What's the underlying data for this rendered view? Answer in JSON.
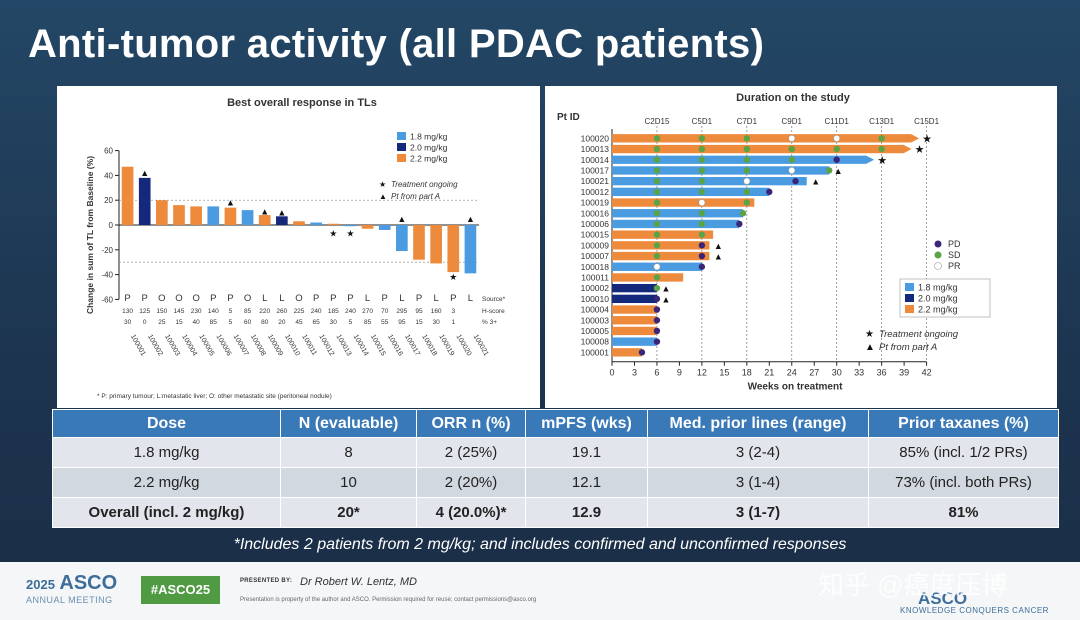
{
  "slide": {
    "title": "Anti-tumor activity (all PDAC patients)"
  },
  "colors": {
    "d18": "#4a9be0",
    "d20": "#14287c",
    "d22": "#ed8a3c",
    "pd": "#3a2578",
    "sd": "#5aa347",
    "pr": "#ffffff",
    "table_header": "#3a79b7"
  },
  "chart_data": [
    {
      "type": "bar",
      "title": "Best overall response in TLs",
      "ylabel": "Change in sum of TL from Baseline (%)",
      "xlabel": "",
      "ylim": [
        -60,
        60
      ],
      "yticks": [
        60,
        40,
        20,
        0,
        -20,
        -40,
        -60
      ],
      "dashed_reference_lines": [
        20,
        -30
      ],
      "grid": false,
      "legend_placement": "top-right",
      "legend": [
        {
          "label": "1.8 mg/kg",
          "color": "#4a9be0"
        },
        {
          "label": "2.0 mg/kg",
          "color": "#14287c"
        },
        {
          "label": "2.2 mg/kg",
          "color": "#ed8a3c"
        }
      ],
      "markers_legend": [
        {
          "symbol": "★",
          "label": "Treatment ongoing"
        },
        {
          "symbol": "▲",
          "label": "Pt from part A"
        }
      ],
      "categories": [
        "100001",
        "100002",
        "100003",
        "100004",
        "100005",
        "100006",
        "100007",
        "100008",
        "100009",
        "100010",
        "100011",
        "100012",
        "100013",
        "100014",
        "100015",
        "100016",
        "100017",
        "100018",
        "100019",
        "100020",
        "100021"
      ],
      "values": [
        47,
        38,
        20,
        16,
        15,
        15,
        14,
        12,
        8,
        7,
        3,
        2,
        1,
        -1,
        -3,
        -4,
        -21,
        -28,
        -31,
        -38,
        -39
      ],
      "dose_group": [
        "d22",
        "d20",
        "d22",
        "d22",
        "d22",
        "d18",
        "d22",
        "d18",
        "d22",
        "d20",
        "d22",
        "d18",
        "d22",
        "d18",
        "d22",
        "d18",
        "d18",
        "d22",
        "d22",
        "d22",
        "d18"
      ],
      "markers": [
        {
          "index": 1,
          "symbol": "▲",
          "value": 42
        },
        {
          "index": 6,
          "symbol": "▲",
          "value": 18
        },
        {
          "index": 8,
          "symbol": "▲",
          "value": 11
        },
        {
          "index": 9,
          "symbol": "▲",
          "value": 10
        },
        {
          "index": 12,
          "symbol": "★",
          "value": -7
        },
        {
          "index": 13,
          "symbol": "★",
          "value": -7
        },
        {
          "index": 16,
          "symbol": "▲",
          "value": 5
        },
        {
          "index": 19,
          "symbol": "★",
          "value": -42
        },
        {
          "index": 20,
          "symbol": "▲",
          "value": 5
        }
      ],
      "source_row": [
        "P",
        "P",
        "O",
        "O",
        "O",
        "P",
        "P",
        "O",
        "L",
        "L",
        "O",
        "P",
        "P",
        "P",
        "L",
        "P",
        "L",
        "P",
        "L",
        "P",
        "L"
      ],
      "hscore_row": [
        "130",
        "125",
        "150",
        "145",
        "230",
        "140",
        "5",
        "85",
        "220",
        "260",
        "225",
        "240",
        "185",
        "240",
        "270",
        "70",
        "295",
        "95",
        "160",
        "3",
        ""
      ],
      "pct3_row": [
        "30",
        "0",
        "25",
        "15",
        "40",
        "85",
        "5",
        "60",
        "80",
        "20",
        "45",
        "65",
        "30",
        "5",
        "85",
        "55",
        "95",
        "15",
        "30",
        "1",
        ""
      ],
      "row_labels": [
        "Source*",
        "H-score",
        "% 3+"
      ],
      "footnote": "* P: primary tumour; L:metastatic liver; O: other metastatic site (peritoneal nodule)"
    },
    {
      "type": "swimmer",
      "title": "Duration on the study",
      "xlabel": "Weeks on treatment",
      "ylabel": "Pt ID",
      "xlim": [
        0,
        42
      ],
      "xticks": [
        0,
        3,
        6,
        9,
        12,
        15,
        18,
        21,
        24,
        27,
        30,
        33,
        36,
        39,
        42
      ],
      "visits": [
        {
          "label": "C2D15",
          "week": 6
        },
        {
          "label": "C5D1",
          "week": 12
        },
        {
          "label": "C7D1",
          "week": 18
        },
        {
          "label": "C9D1",
          "week": 24
        },
        {
          "label": "C11D1",
          "week": 30
        },
        {
          "label": "C13D1",
          "week": 36
        },
        {
          "label": "C15D1",
          "week": 42
        }
      ],
      "legend": [
        {
          "label": "PD",
          "color": "#3a2578"
        },
        {
          "label": "SD",
          "color": "#5aa347"
        },
        {
          "label": "PR",
          "color": "#ffffff"
        },
        {
          "label": "1.8 mg/kg",
          "color": "#4a9be0"
        },
        {
          "label": "2.0 mg/kg",
          "color": "#14287c"
        },
        {
          "label": "2.2 mg/kg",
          "color": "#ed8a3c"
        },
        {
          "label": "Treatment ongoing",
          "symbol": "★"
        },
        {
          "label": "Pt from part A",
          "symbol": "▲"
        }
      ],
      "patients": [
        {
          "id": "100020",
          "dose": "d22",
          "weeks": 41,
          "ongoing": true,
          "partA": false,
          "assess": [
            [
              6,
              "sd"
            ],
            [
              12,
              "sd"
            ],
            [
              18,
              "sd"
            ],
            [
              24,
              "pr"
            ],
            [
              30,
              "pr"
            ],
            [
              36,
              "sd"
            ]
          ]
        },
        {
          "id": "100013",
          "dose": "d22",
          "weeks": 40,
          "ongoing": true,
          "partA": false,
          "assess": [
            [
              6,
              "sd"
            ],
            [
              12,
              "sd"
            ],
            [
              18,
              "sd"
            ],
            [
              24,
              "sd"
            ],
            [
              30,
              "sd"
            ],
            [
              36,
              "sd"
            ]
          ]
        },
        {
          "id": "100014",
          "dose": "d18",
          "weeks": 35,
          "ongoing": true,
          "partA": false,
          "assess": [
            [
              6,
              "sd"
            ],
            [
              12,
              "sd"
            ],
            [
              18,
              "sd"
            ],
            [
              24,
              "sd"
            ],
            [
              30,
              "pd"
            ]
          ]
        },
        {
          "id": "100017",
          "dose": "d18",
          "weeks": 29,
          "ongoing": false,
          "partA": true,
          "assess": [
            [
              6,
              "sd"
            ],
            [
              12,
              "sd"
            ],
            [
              18,
              "sd"
            ],
            [
              24,
              "pr"
            ],
            [
              29,
              "sd"
            ]
          ]
        },
        {
          "id": "100021",
          "dose": "d18",
          "weeks": 26,
          "ongoing": false,
          "partA": true,
          "assess": [
            [
              6,
              "sd"
            ],
            [
              12,
              "sd"
            ],
            [
              18,
              "pr"
            ],
            [
              24.5,
              "pd"
            ]
          ]
        },
        {
          "id": "100012",
          "dose": "d18",
          "weeks": 21,
          "ongoing": false,
          "partA": false,
          "assess": [
            [
              6,
              "sd"
            ],
            [
              12,
              "sd"
            ],
            [
              18,
              "sd"
            ],
            [
              21,
              "pd"
            ]
          ]
        },
        {
          "id": "100019",
          "dose": "d22",
          "weeks": 19,
          "ongoing": false,
          "partA": false,
          "assess": [
            [
              6,
              "sd"
            ],
            [
              12,
              "pr"
            ],
            [
              18,
              "sd"
            ]
          ]
        },
        {
          "id": "100016",
          "dose": "d18",
          "weeks": 17.5,
          "ongoing": false,
          "partA": false,
          "assess": [
            [
              6,
              "sd"
            ],
            [
              12,
              "sd"
            ],
            [
              17.5,
              "sd"
            ]
          ]
        },
        {
          "id": "100006",
          "dose": "d18",
          "weeks": 17,
          "ongoing": false,
          "partA": false,
          "assess": [
            [
              6,
              "sd"
            ],
            [
              12,
              "sd"
            ],
            [
              17,
              "pd"
            ]
          ]
        },
        {
          "id": "100015",
          "dose": "d22",
          "weeks": 13.5,
          "ongoing": false,
          "partA": false,
          "assess": [
            [
              6,
              "sd"
            ],
            [
              12,
              "sd"
            ]
          ]
        },
        {
          "id": "100009",
          "dose": "d22",
          "weeks": 13,
          "ongoing": false,
          "partA": true,
          "assess": [
            [
              6,
              "sd"
            ],
            [
              12,
              "pd"
            ]
          ]
        },
        {
          "id": "100007",
          "dose": "d22",
          "weeks": 13,
          "ongoing": false,
          "partA": true,
          "assess": [
            [
              6,
              "sd"
            ],
            [
              12,
              "pd"
            ]
          ]
        },
        {
          "id": "100018",
          "dose": "d18",
          "weeks": 12,
          "ongoing": false,
          "partA": false,
          "assess": [
            [
              6,
              "pr"
            ],
            [
              12,
              "pd"
            ]
          ]
        },
        {
          "id": "100011",
          "dose": "d22",
          "weeks": 9.5,
          "ongoing": false,
          "partA": false,
          "assess": [
            [
              6,
              "sd"
            ]
          ]
        },
        {
          "id": "100002",
          "dose": "d20",
          "weeks": 6,
          "ongoing": false,
          "partA": true,
          "assess": [
            [
              6,
              "sd"
            ]
          ]
        },
        {
          "id": "100010",
          "dose": "d20",
          "weeks": 6,
          "ongoing": false,
          "partA": true,
          "assess": [
            [
              6,
              "pd"
            ]
          ]
        },
        {
          "id": "100004",
          "dose": "d22",
          "weeks": 6,
          "ongoing": false,
          "partA": false,
          "assess": [
            [
              6,
              "pd"
            ]
          ]
        },
        {
          "id": "100003",
          "dose": "d22",
          "weeks": 6,
          "ongoing": false,
          "partA": false,
          "assess": [
            [
              6,
              "pd"
            ]
          ]
        },
        {
          "id": "100005",
          "dose": "d22",
          "weeks": 6,
          "ongoing": false,
          "partA": false,
          "assess": [
            [
              6,
              "pd"
            ]
          ]
        },
        {
          "id": "100008",
          "dose": "d18",
          "weeks": 6,
          "ongoing": false,
          "partA": false,
          "assess": [
            [
              6,
              "pd"
            ]
          ]
        },
        {
          "id": "100001",
          "dose": "d22",
          "weeks": 4,
          "ongoing": false,
          "partA": false,
          "assess": [
            [
              4,
              "pd"
            ]
          ]
        }
      ]
    },
    {
      "type": "table",
      "columns": [
        "Dose",
        "N (evaluable)",
        "ORR n (%)",
        "mPFS (wks)",
        "Med. prior lines (range)",
        "Prior taxanes (%)"
      ],
      "rows": [
        [
          "1.8 mg/kg",
          "8",
          "2 (25%)",
          "19.1",
          "3 (2-4)",
          "85% (incl. 1/2 PRs)"
        ],
        [
          "2.2 mg/kg",
          "10",
          "2 (20%)",
          "12.1",
          "3 (1-4)",
          "73% (incl. both PRs)"
        ],
        [
          "Overall (incl. 2 mg/kg)",
          "20*",
          "4 (20.0%)*",
          "12.9",
          "3 (1-7)",
          "81%"
        ]
      ],
      "footnote": "*Includes 2 patients from 2 mg/kg; and includes confirmed and unconfirmed responses"
    }
  ],
  "footer": {
    "asco_year": "2025",
    "asco_name": "ASCO",
    "asco_sub": "ANNUAL MEETING",
    "hashtag": "#ASCO25",
    "presented_label": "PRESENTED BY:",
    "presenter": "Dr Robert W. Lentz, MD",
    "disclaimer": "Presentation is property of the author and ASCO. Permission required for reuse; contact permissions@asco.org",
    "watermark": "知乎 @癌度压博",
    "asco_right": "ASCO",
    "asco_right_sub": "KNOWLEDGE CONQUERS CANCER"
  }
}
